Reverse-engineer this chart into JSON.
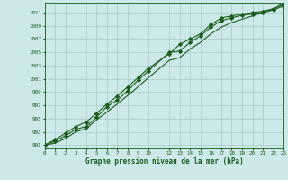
{
  "xlabel": "Graphe pression niveau de la mer (hPa)",
  "bg_color": "#cce8e8",
  "grid_color": "#aacccc",
  "line_color": "#1a5c1a",
  "x_ticks": [
    0,
    1,
    2,
    3,
    4,
    5,
    6,
    7,
    8,
    9,
    10,
    12,
    13,
    14,
    15,
    16,
    17,
    18,
    19,
    20,
    21,
    22,
    23
  ],
  "y_ticks": [
    991,
    993,
    995,
    997,
    999,
    1001,
    1003,
    1005,
    1007,
    1009,
    1011
  ],
  "xlim": [
    0,
    23
  ],
  "ylim": [
    990.5,
    1012.5
  ],
  "line1_x": [
    0,
    1,
    2,
    3,
    4,
    5,
    6,
    7,
    8,
    9,
    10,
    12,
    13,
    14,
    15,
    16,
    17,
    18,
    19,
    20,
    21,
    22,
    23
  ],
  "line1_y": [
    991.0,
    991.8,
    992.8,
    993.8,
    994.5,
    995.8,
    997.2,
    998.4,
    999.8,
    1001.2,
    1002.6,
    1004.8,
    1006.2,
    1007.0,
    1007.8,
    1009.2,
    1010.2,
    1010.5,
    1010.8,
    1011.0,
    1011.2,
    1011.6,
    1012.2
  ],
  "line2_x": [
    0,
    1,
    2,
    3,
    4,
    5,
    6,
    7,
    8,
    9,
    10,
    12,
    13,
    14,
    15,
    16,
    17,
    18,
    19,
    20,
    21,
    22,
    23
  ],
  "line2_y": [
    991.0,
    991.6,
    992.4,
    993.4,
    993.8,
    995.2,
    996.8,
    997.8,
    999.2,
    1000.8,
    1002.2,
    1005.0,
    1005.2,
    1006.5,
    1007.5,
    1008.8,
    1009.8,
    1010.2,
    1010.6,
    1010.8,
    1011.0,
    1011.4,
    1012.0
  ],
  "line3_x": [
    0,
    1,
    2,
    3,
    4,
    5,
    6,
    7,
    8,
    9,
    10,
    12,
    13,
    14,
    15,
    16,
    17,
    18,
    19,
    20,
    21,
    22,
    23
  ],
  "line3_y": [
    991.0,
    991.3,
    992.0,
    993.0,
    993.5,
    994.8,
    996.0,
    997.2,
    998.5,
    999.8,
    1001.2,
    1003.8,
    1004.2,
    1005.5,
    1006.5,
    1007.8,
    1008.8,
    1009.5,
    1010.0,
    1010.5,
    1011.0,
    1011.5,
    1012.5
  ],
  "marker": "D",
  "markersize": 2.2,
  "linewidth": 0.8
}
